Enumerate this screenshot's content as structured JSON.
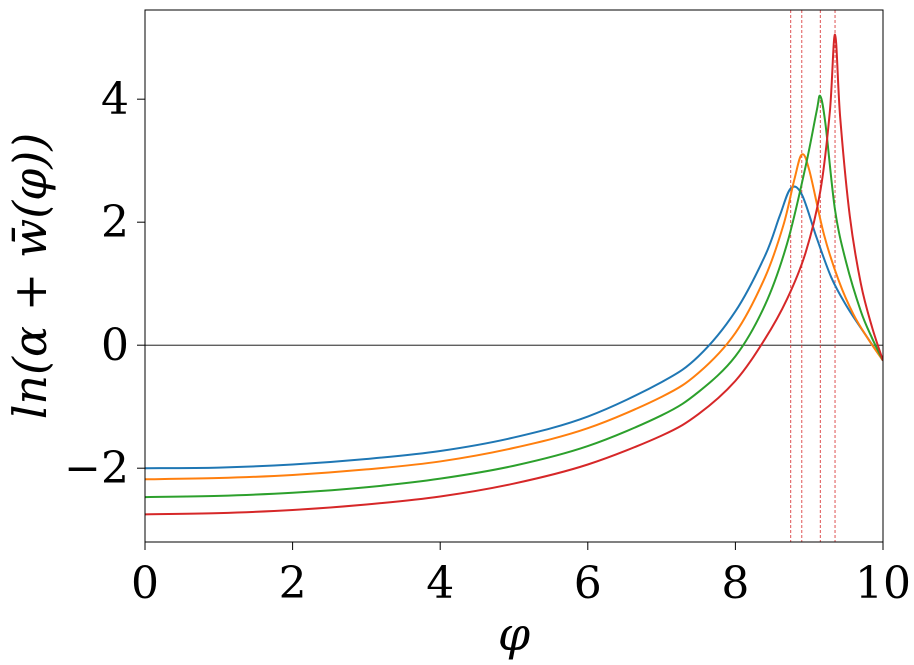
{
  "chart_data": {
    "type": "line",
    "title": "",
    "xlabel": "φ",
    "ylabel": "ln(α + w̄(φ))",
    "xlim": [
      0,
      10
    ],
    "ylim": [
      -3.2,
      5.45
    ],
    "x_ticks": [
      0,
      2,
      4,
      6,
      8,
      10
    ],
    "y_ticks": [
      -2,
      0,
      2,
      4
    ],
    "x_tick_labels": [
      "0",
      "2",
      "4",
      "6",
      "8",
      "10"
    ],
    "y_tick_labels": [
      "−2",
      "0",
      "2",
      "4"
    ],
    "grid": false,
    "legend": "none",
    "reference_lines": {
      "horizontal_y": 0,
      "vertical_x": [
        8.75,
        8.9,
        9.15,
        9.35
      ]
    },
    "series": [
      {
        "color": "#1f77b4",
        "points": [
          [
            0,
            -2.0
          ],
          [
            1,
            -1.99
          ],
          [
            2,
            -1.94
          ],
          [
            3,
            -1.85
          ],
          [
            4,
            -1.72
          ],
          [
            5,
            -1.5
          ],
          [
            6,
            -1.16
          ],
          [
            7,
            -0.6
          ],
          [
            7.5,
            -0.18
          ],
          [
            8.0,
            0.55
          ],
          [
            8.4,
            1.45
          ],
          [
            8.6,
            2.1
          ],
          [
            8.75,
            2.55
          ],
          [
            8.9,
            2.45
          ],
          [
            9.1,
            1.75
          ],
          [
            9.3,
            1.1
          ],
          [
            9.5,
            0.65
          ],
          [
            9.7,
            0.28
          ],
          [
            10,
            -0.25
          ]
        ]
      },
      {
        "color": "#ff7f0e",
        "points": [
          [
            0,
            -2.18
          ],
          [
            1,
            -2.16
          ],
          [
            2,
            -2.11
          ],
          [
            3,
            -2.02
          ],
          [
            4,
            -1.89
          ],
          [
            5,
            -1.67
          ],
          [
            6,
            -1.35
          ],
          [
            7,
            -0.84
          ],
          [
            7.5,
            -0.45
          ],
          [
            8.0,
            0.2
          ],
          [
            8.4,
            1.1
          ],
          [
            8.65,
            1.95
          ],
          [
            8.8,
            2.7
          ],
          [
            8.9,
            3.1
          ],
          [
            9.0,
            2.85
          ],
          [
            9.2,
            1.8
          ],
          [
            9.4,
            1.05
          ],
          [
            9.6,
            0.5
          ],
          [
            9.8,
            0.1
          ],
          [
            10,
            -0.25
          ]
        ]
      },
      {
        "color": "#2ca02c",
        "points": [
          [
            0,
            -2.47
          ],
          [
            1,
            -2.45
          ],
          [
            2,
            -2.4
          ],
          [
            3,
            -2.31
          ],
          [
            4,
            -2.17
          ],
          [
            5,
            -1.96
          ],
          [
            6,
            -1.64
          ],
          [
            7,
            -1.14
          ],
          [
            7.5,
            -0.76
          ],
          [
            8.0,
            -0.18
          ],
          [
            8.4,
            0.65
          ],
          [
            8.7,
            1.65
          ],
          [
            8.95,
            2.9
          ],
          [
            9.1,
            3.8
          ],
          [
            9.15,
            4.05
          ],
          [
            9.22,
            3.6
          ],
          [
            9.35,
            2.2
          ],
          [
            9.5,
            1.35
          ],
          [
            9.7,
            0.55
          ],
          [
            9.85,
            0.12
          ],
          [
            10,
            -0.25
          ]
        ]
      },
      {
        "color": "#d62728",
        "points": [
          [
            0,
            -2.75
          ],
          [
            1,
            -2.73
          ],
          [
            2,
            -2.68
          ],
          [
            3,
            -2.59
          ],
          [
            4,
            -2.46
          ],
          [
            5,
            -2.25
          ],
          [
            6,
            -1.94
          ],
          [
            7,
            -1.47
          ],
          [
            7.5,
            -1.12
          ],
          [
            8.0,
            -0.58
          ],
          [
            8.4,
            0.1
          ],
          [
            8.7,
            0.75
          ],
          [
            8.95,
            1.5
          ],
          [
            9.15,
            2.5
          ],
          [
            9.28,
            3.8
          ],
          [
            9.35,
            5.05
          ],
          [
            9.42,
            3.7
          ],
          [
            9.55,
            2.1
          ],
          [
            9.7,
            1.0
          ],
          [
            9.85,
            0.3
          ],
          [
            10,
            -0.25
          ]
        ]
      }
    ]
  }
}
